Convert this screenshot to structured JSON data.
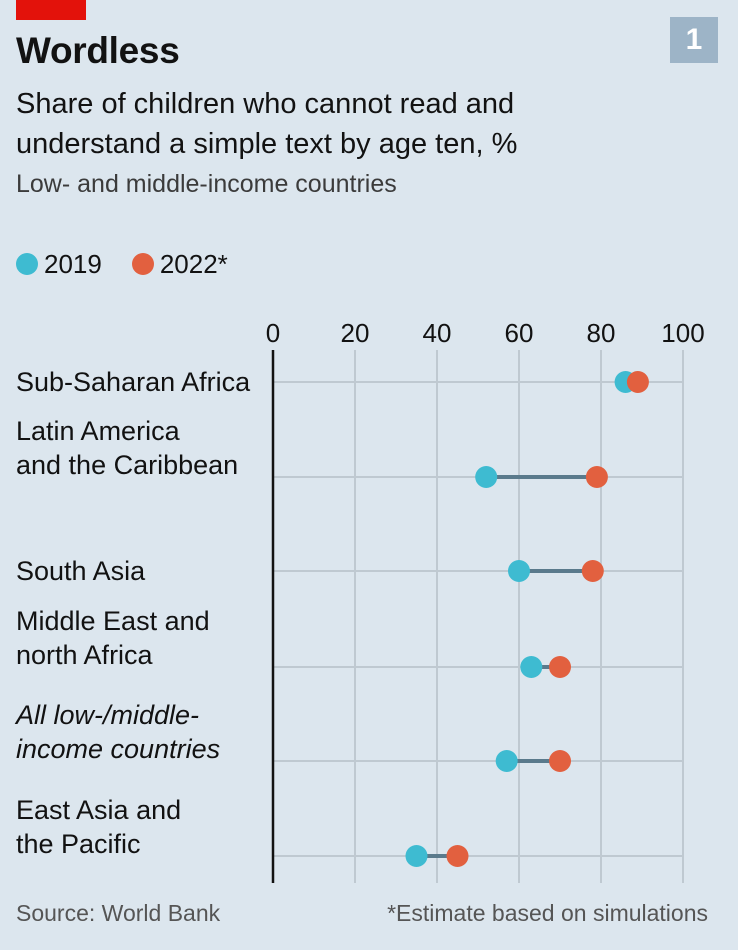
{
  "header": {
    "title": "Wordless",
    "subtitle": "Share of children who cannot read and understand a simple text by age ten, %",
    "subsubtitle": "Low- and middle-income countries",
    "badge": "1"
  },
  "legend": [
    {
      "label": "2019",
      "color": "#3ebbd1"
    },
    {
      "label": "2022*",
      "color": "#e2603f"
    }
  ],
  "footer": {
    "source": "Source: World Bank",
    "note": "*Estimate based on simulations"
  },
  "chart_data": {
    "type": "dumbbell",
    "xlim": [
      0,
      100
    ],
    "xticks": [
      0,
      20,
      40,
      60,
      80,
      100
    ],
    "grid": true,
    "legend_position": "top-left",
    "categories": [
      {
        "label_lines": [
          "Sub-Saharan Africa"
        ],
        "italic": false
      },
      {
        "label_lines": [
          "Latin America",
          "and the Caribbean"
        ],
        "italic": false
      },
      {
        "label_lines": [
          "South Asia"
        ],
        "italic": false
      },
      {
        "label_lines": [
          "Middle East and",
          "north Africa"
        ],
        "italic": false
      },
      {
        "label_lines": [
          "All low-/middle-",
          "income countries"
        ],
        "italic": true
      },
      {
        "label_lines": [
          "East Asia and",
          "the Pacific"
        ],
        "italic": false
      }
    ],
    "series": [
      {
        "name": "2019",
        "color": "#3ebbd1",
        "values": [
          86,
          52,
          60,
          63,
          57,
          35
        ]
      },
      {
        "name": "2022*",
        "color": "#e2603f",
        "values": [
          89,
          79,
          78,
          70,
          70,
          45
        ]
      }
    ]
  }
}
